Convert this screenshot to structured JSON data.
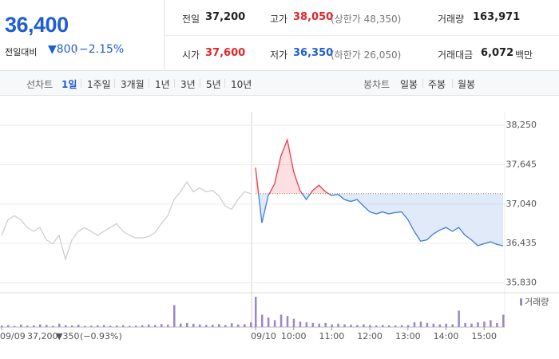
{
  "header": {
    "price": "36,400",
    "change_label": "전일대비",
    "change": "▼800",
    "change_rate": "−2.15%"
  },
  "stats": [
    {
      "label": "전일",
      "value": "37,200"
    },
    {
      "label": "고가",
      "value": "38,050",
      "note": "(상한가 48,350)"
    },
    {
      "label": "거래량",
      "value": "163,971"
    },
    {
      "label": "시가",
      "value": "37,600"
    },
    {
      "label": "저가",
      "value": "36,350",
      "note": "(하한가 26,050)"
    },
    {
      "label": "거래대금",
      "value": "6,072",
      "unit": "백만"
    }
  ],
  "tabs": {
    "line_label": "선차트",
    "line": [
      "1일",
      "1주일",
      "3개월",
      "1년",
      "3년",
      "5년",
      "10년"
    ],
    "candle_label": "봉차트",
    "candle": [
      "일봉",
      "주봉",
      "월봉"
    ]
  },
  "chart_data": {
    "type": "line",
    "categories": [
      "09/09",
      null,
      null,
      null,
      null,
      null,
      null,
      null,
      null,
      null,
      null,
      null,
      null,
      null,
      null,
      null,
      null,
      null,
      null,
      null,
      null,
      null,
      null,
      null,
      null,
      null,
      null,
      null,
      null,
      null,
      null,
      null,
      null,
      null,
      null,
      null,
      null,
      null,
      null,
      null,
      "09/10",
      null,
      null,
      null,
      null,
      null,
      "10:00",
      null,
      null,
      null,
      null,
      null,
      "11:00",
      null,
      null,
      null,
      null,
      null,
      "12:00",
      null,
      null,
      null,
      null,
      null,
      "13:00",
      null,
      null,
      null,
      null,
      null,
      "14:00",
      null,
      null,
      null,
      null,
      null,
      "15:00",
      null,
      null,
      null
    ],
    "prev_summary": [
      "37,200",
      "▼350",
      "(−0.93%)"
    ],
    "baseline": 37200,
    "series": [
      {
        "color": "#cfcfcf",
        "values": [
          36555,
          36800,
          36860,
          36800,
          36680,
          36620,
          36680,
          36490,
          36430,
          36560,
          36190,
          36490,
          36620,
          36680,
          36620,
          36560,
          36620,
          36680,
          36740,
          36620,
          36560,
          36520,
          36520,
          36540,
          36600,
          36740,
          36860,
          37110,
          37230,
          37380,
          37230,
          37290,
          37230,
          37250,
          37170,
          37010,
          36960,
          37110,
          37230,
          37200,
          null,
          null,
          null,
          null,
          null,
          null,
          null,
          null,
          null,
          null,
          null,
          null,
          null,
          null,
          null,
          null,
          null,
          null,
          null,
          null,
          null,
          null,
          null,
          null,
          null,
          null,
          null,
          null,
          null,
          null,
          null,
          null,
          null,
          null,
          null,
          null,
          null,
          null,
          null,
          null
        ]
      },
      {
        "color": "#3d7edb",
        "up_color": "#ee3b47",
        "values": [
          null,
          null,
          null,
          null,
          null,
          null,
          null,
          null,
          null,
          null,
          null,
          null,
          null,
          null,
          null,
          null,
          null,
          null,
          null,
          null,
          null,
          null,
          null,
          null,
          null,
          null,
          null,
          null,
          null,
          null,
          null,
          null,
          null,
          null,
          null,
          null,
          null,
          null,
          null,
          null,
          37600,
          36750,
          37170,
          37350,
          37780,
          38030,
          37540,
          37250,
          37110,
          37250,
          37330,
          37230,
          37170,
          37190,
          37110,
          37080,
          37110,
          37010,
          36920,
          36890,
          36920,
          36890,
          36910,
          36920,
          36800,
          36620,
          36470,
          36490,
          36580,
          36640,
          36680,
          36620,
          36680,
          36560,
          36490,
          36400,
          36430,
          36460,
          36420,
          36400
        ]
      },
      {
        "name": "거래량",
        "axis": "volume",
        "color": "#9b86c8",
        "values": [
          1200,
          1500,
          900,
          1800,
          1100,
          1300,
          2000,
          1600,
          1000,
          2500,
          1400,
          1200,
          1700,
          900,
          1100,
          1300,
          1500,
          1000,
          1200,
          1400,
          800,
          1100,
          1300,
          1900,
          1500,
          2200,
          1800,
          16000,
          2600,
          3000,
          2400,
          2000,
          1600,
          1800,
          2200,
          1500,
          2800,
          1900,
          2100,
          3500,
          22000,
          9000,
          7000,
          5000,
          9000,
          8000,
          6000,
          4000,
          3500,
          3000,
          2500,
          3000,
          2000,
          2500,
          2000,
          1800,
          1500,
          2000,
          1500,
          1200,
          1500,
          1300,
          1200,
          1400,
          1500,
          3500,
          4000,
          3000,
          2500,
          2000,
          2500,
          2000,
          12000,
          3000,
          2500,
          3500,
          4000,
          5000,
          3000,
          9000
        ]
      }
    ],
    "ylim": [
      35700,
      38400
    ],
    "yticks": [
      {
        "value": 38250,
        "label": "38,250"
      },
      {
        "value": 37645,
        "label": "37,645"
      },
      {
        "value": 37040,
        "label": "37,040"
      },
      {
        "value": 36435,
        "label": "36,435"
      },
      {
        "value": 35830,
        "label": "35,830"
      }
    ],
    "grid": true
  }
}
